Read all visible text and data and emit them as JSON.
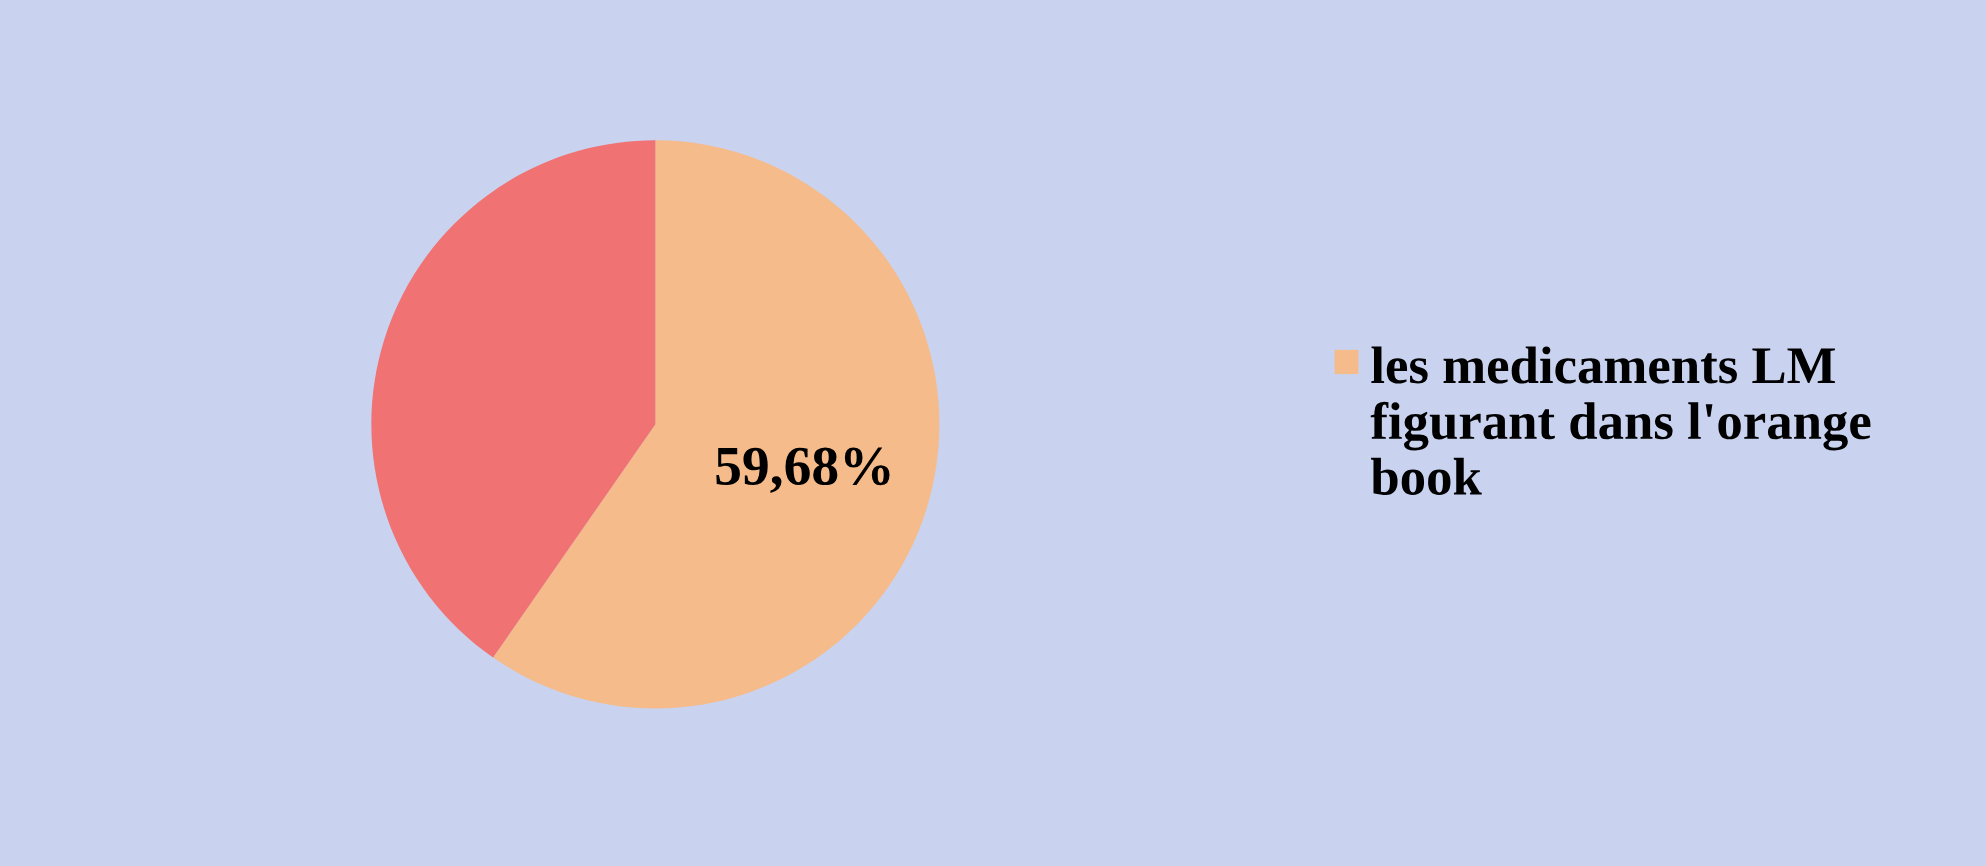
{
  "chart_data": {
    "type": "pie",
    "categories": [
      "les medicaments LM figurant dans l'orange book",
      null
    ],
    "values": [
      59.68,
      40.32
    ],
    "colors": [
      "#f5bb8a",
      "#f07272"
    ],
    "value_labels": [
      "59,68%",
      null
    ],
    "legend": "right"
  }
}
